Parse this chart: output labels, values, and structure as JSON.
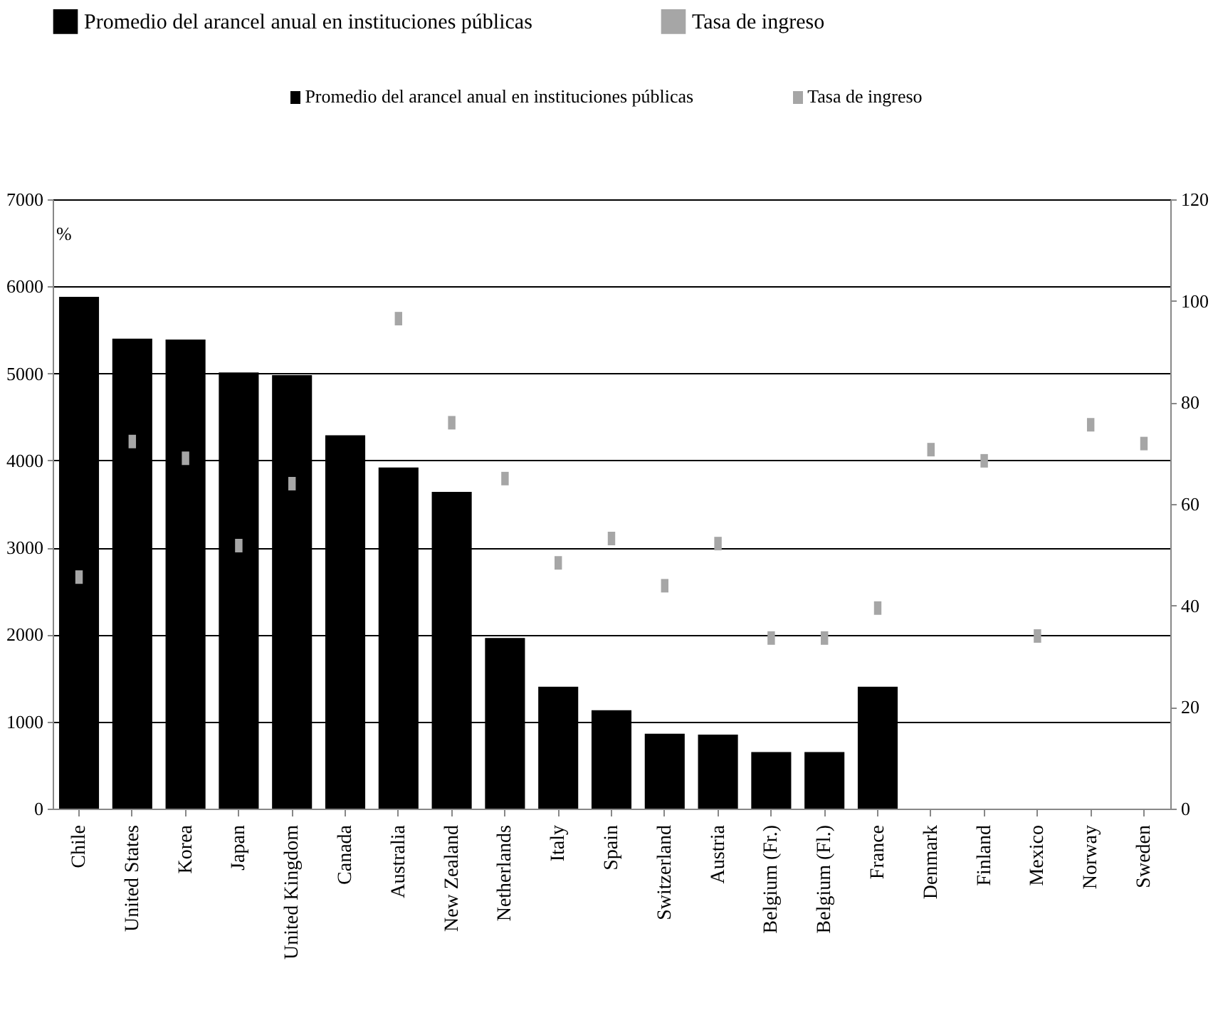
{
  "chart_data": {
    "type": "bar",
    "categories": [
      "Chile",
      "United States",
      "Korea",
      "Japan",
      "United Kingdom",
      "Canada",
      "Australia",
      "New Zealand",
      "Netherlands",
      "Italy",
      "Spain",
      "Switzerland",
      "Austria",
      "Belgium (Fr.)",
      "Belgium (Fl.)",
      "France",
      "Denmark",
      "Finland",
      "Mexico",
      "Norway",
      "Sweden"
    ],
    "series": [
      {
        "name": "Promedio del arancel anual en instituciones públicas",
        "color": "#000000",
        "values": [
          5880,
          5400,
          5390,
          5010,
          4980,
          4290,
          3920,
          3640,
          1960,
          1400,
          1130,
          860,
          850,
          650,
          650,
          1400,
          0,
          0,
          0,
          0,
          0
        ]
      },
      {
        "name": "Tasa de ingreso",
        "type": "scatter",
        "axis": "y2",
        "color": "#a6a6a6",
        "values": [
          45.6,
          72.3,
          69,
          51.8,
          64,
          null,
          96.5,
          76,
          65,
          48.4,
          53.2,
          43.9,
          52.2,
          33.6,
          33.6,
          39.5,
          70.7,
          68.5,
          34,
          75.6,
          71.9
        ]
      }
    ],
    "ylabel": "%",
    "ylim": [
      0,
      7000
    ],
    "yticks": [
      0,
      1000,
      2000,
      3000,
      4000,
      5000,
      6000,
      7000
    ],
    "y2lim": [
      0,
      120
    ],
    "y2ticks": [
      0,
      20,
      40,
      60,
      80,
      100,
      120
    ],
    "grid": "y",
    "legend": "top",
    "marker": "square",
    "annotations": [
      "Promedio del arancel anual en instituciones públicas",
      "Tasa de ingreso"
    ]
  }
}
